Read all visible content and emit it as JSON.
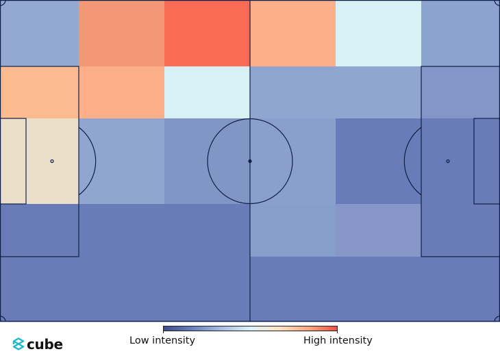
{
  "chart_data": {
    "type": "heatmap",
    "title": "",
    "background": "football-pitch",
    "grid": {
      "rows": 5,
      "cols": 6
    },
    "colormap": [
      "#3b4c8c",
      "#6a80bc",
      "#a7bfe0",
      "#dcf2f6",
      "#fde2c4",
      "#fcaa84",
      "#e9503f"
    ],
    "cells": [
      [
        "#93a9d2",
        "#f29874",
        "#f96b55",
        "#fcaf88",
        "#d8f1f5",
        "#8da3cf"
      ],
      [
        "#fcbb8e",
        "#fcaf88",
        "#d8f1f5",
        "#90a6d0",
        "#90a6d0",
        "#8496c8"
      ],
      [
        "#ebdfca",
        "#90a6d0",
        "#8296c6",
        "#8a9fcc",
        "#697cb8",
        "#697cb8"
      ],
      [
        "#697cb8",
        "#697cb8",
        "#697cb8",
        "#879dca",
        "#8798c8",
        "#697cb8"
      ],
      [
        "#697cb8",
        "#697cb8",
        "#697cb8",
        "#697cb8",
        "#697cb8",
        "#697cb8"
      ]
    ],
    "legend": {
      "type": "colorbar",
      "placement": "bottom-center",
      "low_label": "Low intensity",
      "high_label": "High intensity"
    },
    "line_color": "#0d1f45"
  },
  "branding": {
    "logo_text": "cube",
    "logo_color": "#1fb8c9"
  }
}
